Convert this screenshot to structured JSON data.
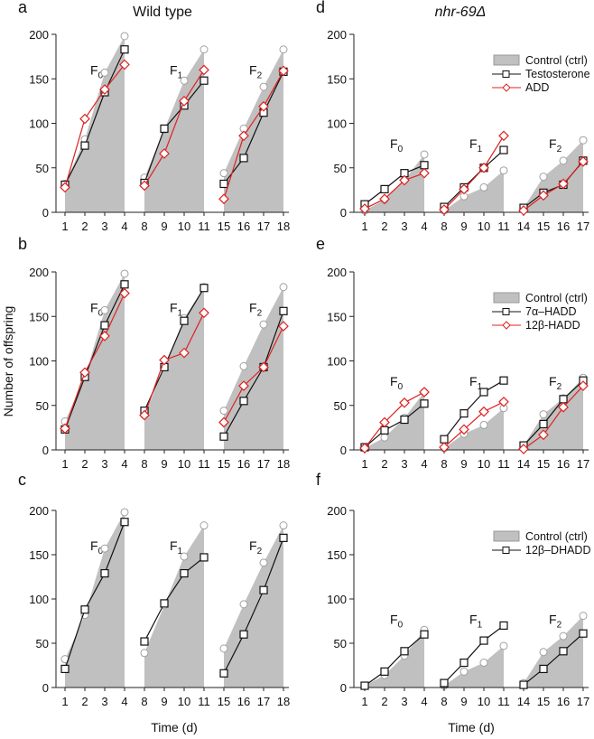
{
  "figure": {
    "left_title": "Wild type",
    "right_title": "nhr-69Δ",
    "ylabel": "Number of offspring",
    "xlabel": "Time (d)",
    "colors": {
      "control_fill": "#c0c0c0",
      "control_marker": "#a0a0a0",
      "black": "#111111",
      "red": "#e02020"
    }
  },
  "chart_data": [
    {
      "panel": "a",
      "type": "area",
      "ylim": [
        0,
        200
      ],
      "yticks": [
        0,
        50,
        100,
        150,
        200
      ],
      "x": [
        1,
        2,
        3,
        4,
        8,
        9,
        10,
        11,
        15,
        16,
        17,
        18
      ],
      "groups": [
        "F0",
        "F1",
        "F2"
      ],
      "series": [
        {
          "name": "Control (ctrl)",
          "style": "area",
          "values": [
            32,
            82,
            157,
            198,
            39,
            93,
            148,
            183,
            44,
            94,
            141,
            183
          ]
        },
        {
          "name": "Testosterone",
          "style": "black-square",
          "values": [
            31,
            75,
            135,
            183,
            33,
            94,
            120,
            148,
            32,
            61,
            112,
            158
          ]
        },
        {
          "name": "ADD",
          "style": "red-diamond",
          "values": [
            28,
            105,
            138,
            166,
            30,
            66,
            125,
            160,
            15,
            86,
            119,
            159
          ]
        }
      ]
    },
    {
      "panel": "b",
      "type": "area",
      "ylim": [
        0,
        200
      ],
      "yticks": [
        0,
        50,
        100,
        150,
        200
      ],
      "x": [
        1,
        2,
        3,
        4,
        8,
        9,
        10,
        11,
        15,
        16,
        17,
        18
      ],
      "groups": [
        "F0",
        "F1",
        "F2"
      ],
      "series": [
        {
          "name": "Control (ctrl)",
          "style": "area",
          "values": [
            32,
            82,
            157,
            198,
            39,
            93,
            148,
            183,
            44,
            94,
            141,
            183
          ]
        },
        {
          "name": "7α–HADD",
          "style": "black-square",
          "values": [
            23,
            82,
            140,
            186,
            44,
            93,
            145,
            182,
            15,
            55,
            93,
            156
          ]
        },
        {
          "name": "12β-HADD",
          "style": "red-diamond",
          "values": [
            24,
            87,
            128,
            176,
            39,
            101,
            109,
            154,
            31,
            72,
            93,
            139
          ]
        }
      ]
    },
    {
      "panel": "c",
      "type": "area",
      "ylim": [
        0,
        200
      ],
      "yticks": [
        0,
        50,
        100,
        150,
        200
      ],
      "x": [
        1,
        2,
        3,
        4,
        8,
        9,
        10,
        11,
        15,
        16,
        17,
        18
      ],
      "groups": [
        "F0",
        "F1",
        "F2"
      ],
      "series": [
        {
          "name": "Control (ctrl)",
          "style": "area",
          "values": [
            32,
            82,
            157,
            198,
            39,
            93,
            148,
            183,
            44,
            94,
            141,
            183
          ]
        },
        {
          "name": "12β–DHADD",
          "style": "black-square",
          "values": [
            21,
            88,
            129,
            187,
            52,
            95,
            129,
            147,
            16,
            60,
            110,
            169
          ]
        }
      ]
    },
    {
      "panel": "d",
      "type": "area",
      "ylim": [
        0,
        200
      ],
      "yticks": [
        0,
        50,
        100,
        150,
        200
      ],
      "x": [
        1,
        2,
        3,
        4,
        8,
        9,
        10,
        11,
        14,
        15,
        16,
        17
      ],
      "groups": [
        "F0",
        "F1",
        "F2"
      ],
      "legend": [
        "Control (ctrl)",
        "Testosterone",
        "ADD"
      ],
      "series": [
        {
          "name": "Control (ctrl)",
          "style": "area",
          "values": [
            2,
            14,
            36,
            65,
            2,
            18,
            28,
            47,
            5,
            40,
            58,
            81
          ]
        },
        {
          "name": "Testosterone",
          "style": "black-square",
          "values": [
            9,
            26,
            44,
            53,
            6,
            28,
            50,
            70,
            5,
            22,
            31,
            58
          ]
        },
        {
          "name": "ADD",
          "style": "red-diamond",
          "values": [
            4,
            15,
            36,
            44,
            3,
            26,
            50,
            86,
            2,
            19,
            32,
            57
          ]
        }
      ]
    },
    {
      "panel": "e",
      "type": "area",
      "ylim": [
        0,
        200
      ],
      "yticks": [
        0,
        50,
        100,
        150,
        200
      ],
      "x": [
        1,
        2,
        3,
        4,
        8,
        9,
        10,
        11,
        14,
        15,
        16,
        17
      ],
      "groups": [
        "F0",
        "F1",
        "F2"
      ],
      "legend": [
        "Control (ctrl)",
        "7α–HADD",
        "12β-HADD"
      ],
      "series": [
        {
          "name": "Control (ctrl)",
          "style": "area",
          "values": [
            2,
            14,
            36,
            65,
            2,
            18,
            28,
            47,
            5,
            40,
            58,
            81
          ]
        },
        {
          "name": "7α–HADD",
          "style": "black-square",
          "values": [
            3,
            22,
            34,
            52,
            12,
            41,
            65,
            78,
            5,
            29,
            57,
            78
          ]
        },
        {
          "name": "12β-HADD",
          "style": "red-diamond",
          "values": [
            2,
            31,
            53,
            65,
            3,
            23,
            43,
            54,
            1,
            17,
            48,
            72
          ]
        }
      ]
    },
    {
      "panel": "f",
      "type": "area",
      "ylim": [
        0,
        200
      ],
      "yticks": [
        0,
        50,
        100,
        150,
        200
      ],
      "x": [
        1,
        2,
        3,
        4,
        8,
        9,
        10,
        11,
        14,
        15,
        16,
        17
      ],
      "groups": [
        "F0",
        "F1",
        "F2"
      ],
      "legend": [
        "Control (ctrl)",
        "12β–DHADD"
      ],
      "series": [
        {
          "name": "Control (ctrl)",
          "style": "area",
          "values": [
            2,
            14,
            36,
            65,
            2,
            18,
            28,
            47,
            5,
            40,
            58,
            81
          ]
        },
        {
          "name": "12β–DHADD",
          "style": "black-square",
          "values": [
            2,
            18,
            41,
            60,
            5,
            28,
            53,
            70,
            3,
            21,
            41,
            61
          ]
        }
      ]
    }
  ]
}
